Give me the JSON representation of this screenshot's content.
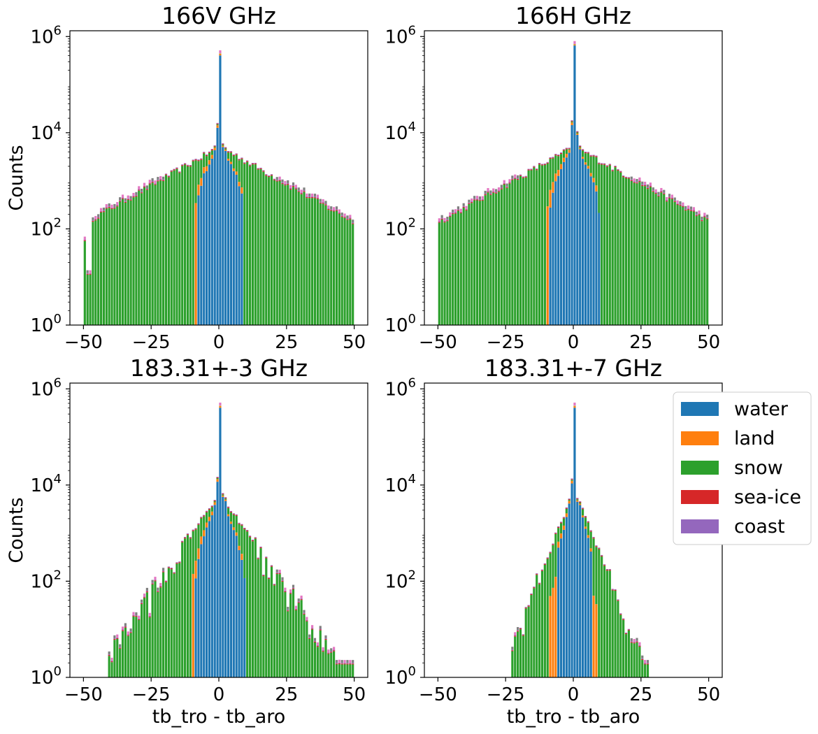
{
  "figure": {
    "shared_ylabel": "Counts",
    "shared_xlabel": "tb_tro - tb_aro"
  },
  "legend": {
    "placement": "right of bottom-right panel",
    "items": [
      {
        "label": "water",
        "color": "#1f77b4"
      },
      {
        "label": "land",
        "color": "#ff7f0e"
      },
      {
        "label": "snow",
        "color": "#2ca02c"
      },
      {
        "label": "sea-ice",
        "color": "#d62728"
      },
      {
        "label": "coast",
        "color": "#9467bd"
      }
    ]
  },
  "chart_data": [
    {
      "type": "bar",
      "stacked": true,
      "title": "166V GHz",
      "ylabel": "Counts",
      "xlabel": "",
      "yscale": "log",
      "ylim": [
        1,
        1000000
      ],
      "xlim": [
        -55,
        55
      ],
      "xticks": [
        -50,
        -25,
        0,
        25,
        50
      ],
      "yticks": [
        1,
        100,
        10000,
        1000000
      ],
      "ytick_labels": [
        {
          "base": "10",
          "exp": "0"
        },
        {
          "base": "10",
          "exp": "2"
        },
        {
          "base": "10",
          "exp": "4"
        },
        {
          "base": "10",
          "exp": "6"
        }
      ],
      "shape": {
        "peak": 450000,
        "peak_share": [
          0.9,
          0.08,
          0.01,
          0.005,
          0.005
        ],
        "near": [
          14000,
          5600
        ],
        "base": 5000,
        "decay": 0.0728,
        "min": 5,
        "water_halfwidth": 8,
        "edge_bump_left": true,
        "land_halfwidth": 9
      }
    },
    {
      "type": "bar",
      "stacked": true,
      "title": "166H GHz",
      "ylabel": "",
      "xlabel": "",
      "yscale": "log",
      "ylim": [
        1,
        1000000
      ],
      "xlim": [
        -55,
        55
      ],
      "xticks": [
        -50,
        -25,
        0,
        25,
        50
      ],
      "yticks": [
        1,
        100,
        10000,
        1000000
      ],
      "ytick_labels": [
        {
          "base": "10",
          "exp": "0"
        },
        {
          "base": "10",
          "exp": "2"
        },
        {
          "base": "10",
          "exp": "4"
        },
        {
          "base": "10",
          "exp": "6"
        }
      ],
      "shape": {
        "peak": 700000,
        "peak_share": [
          0.93,
          0.05,
          0.01,
          0.005,
          0.005
        ],
        "near": [
          16000,
          10000
        ],
        "base": 5000,
        "decay": 0.072,
        "min": 5,
        "water_halfwidth": 35,
        "edge_bump_left": false,
        "land_halfwidth": 10
      }
    },
    {
      "type": "bar",
      "stacked": true,
      "title": "183.31+-3 GHz",
      "ylabel": "Counts",
      "xlabel": "tb_tro - tb_aro",
      "yscale": "log",
      "ylim": [
        1,
        1000000
      ],
      "xlim": [
        -55,
        55
      ],
      "xticks": [
        -50,
        -25,
        0,
        25,
        50
      ],
      "yticks": [
        1,
        100,
        10000,
        1000000
      ],
      "ytick_labels": [
        {
          "base": "10",
          "exp": "0"
        },
        {
          "base": "10",
          "exp": "2"
        },
        {
          "base": "10",
          "exp": "4"
        },
        {
          "base": "10",
          "exp": "6"
        }
      ],
      "shape": {
        "peak": 450000,
        "peak_share": [
          0.9,
          0.08,
          0.01,
          0.005,
          0.005
        ],
        "near": [
          13000,
          6300
        ],
        "base": 6000,
        "decay": 0.19,
        "min": 2,
        "water_halfwidth": 12,
        "edge_bump_left": false,
        "land_halfwidth": 10,
        "range": [
          -41,
          49
        ]
      }
    },
    {
      "type": "bar",
      "stacked": true,
      "title": "183.31+-7 GHz",
      "ylabel": "",
      "xlabel": "tb_tro - tb_aro",
      "yscale": "log",
      "ylim": [
        1,
        1000000
      ],
      "xlim": [
        -55,
        55
      ],
      "xticks": [
        -50,
        -25,
        0,
        25,
        50
      ],
      "yticks": [
        1,
        100,
        10000,
        1000000
      ],
      "ytick_labels": [
        {
          "base": "10",
          "exp": "0"
        },
        {
          "base": "10",
          "exp": "2"
        },
        {
          "base": "10",
          "exp": "4"
        },
        {
          "base": "10",
          "exp": "6"
        }
      ],
      "shape": {
        "peak": 450000,
        "peak_share": [
          0.9,
          0.08,
          0.01,
          0.005,
          0.005
        ],
        "near": [
          12000,
          5000
        ],
        "base": 6500,
        "decay": 0.33,
        "min": 2,
        "water_halfwidth": 6,
        "edge_bump_left": false,
        "land_halfwidth": 9,
        "range": [
          -23,
          27
        ]
      }
    }
  ]
}
